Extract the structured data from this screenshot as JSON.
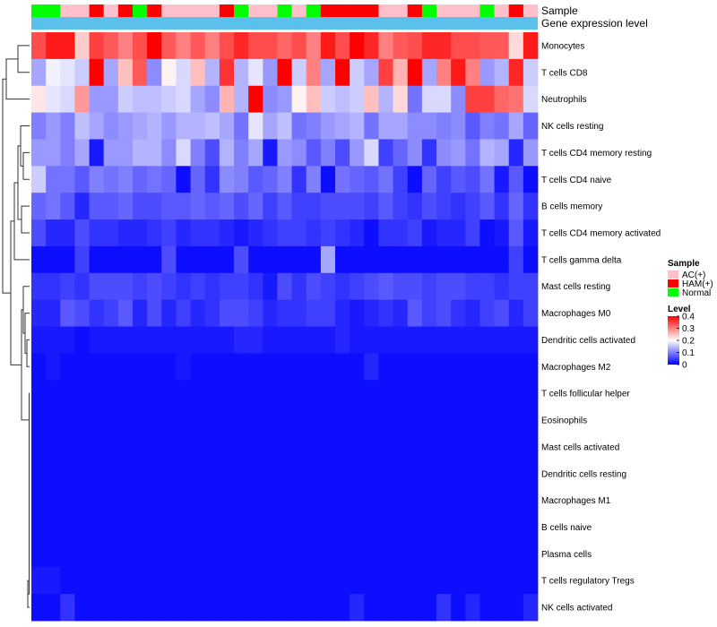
{
  "chart_data": {
    "type": "heatmap",
    "annotation_track_labels": [
      "Sample",
      "Gene expression level"
    ],
    "rows": [
      "Monocytes",
      "T cells CD8",
      "Neutrophils",
      "NK cells resting",
      "T cells CD4 memory resting",
      "T cells CD4 naive",
      "B cells memory",
      "T cells CD4 memory activated",
      "T cells gamma delta",
      "Mast cells resting",
      "Macrophages M0",
      "Dendritic cells activated",
      "Macrophages M2",
      "T cells follicular helper",
      "Eosinophils",
      "Mast cells activated",
      "Dendritic cells resting",
      "Macrophages M1",
      "B cells naive",
      "Plasma cells",
      "T cells regulatory  Tregs",
      "NK cells activated"
    ],
    "sample_groups": [
      "Normal",
      "Normal",
      "AC(+)",
      "AC(+)",
      "HAM(+)",
      "AC(+)",
      "HAM(+)",
      "Normal",
      "HAM(+)",
      "AC(+)",
      "AC(+)",
      "AC(+)",
      "AC(+)",
      "HAM(+)",
      "Normal",
      "AC(+)",
      "AC(+)",
      "Normal",
      "AC(+)",
      "Normal",
      "HAM(+)",
      "HAM(+)",
      "HAM(+)",
      "HAM(+)",
      "AC(+)",
      "AC(+)",
      "HAM(+)",
      "Normal",
      "AC(+)",
      "AC(+)",
      "AC(+)",
      "Normal",
      "AC(+)",
      "HAM(+)",
      "AC(+)"
    ],
    "values": [
      [
        0.34,
        0.38,
        0.38,
        0.24,
        0.35,
        0.33,
        0.3,
        0.34,
        0.4,
        0.33,
        0.3,
        0.33,
        0.3,
        0.34,
        0.37,
        0.34,
        0.34,
        0.32,
        0.34,
        0.3,
        0.38,
        0.34,
        0.4,
        0.37,
        0.3,
        0.33,
        0.34,
        0.37,
        0.37,
        0.34,
        0.34,
        0.33,
        0.33,
        0.23,
        0.38
      ],
      [
        0.13,
        0.19,
        0.18,
        0.16,
        0.4,
        0.13,
        0.25,
        0.33,
        0.11,
        0.21,
        0.17,
        0.25,
        0.14,
        0.36,
        0.14,
        0.18,
        0.12,
        0.4,
        0.16,
        0.3,
        0.13,
        0.4,
        0.16,
        0.13,
        0.35,
        0.26,
        0.4,
        0.13,
        0.3,
        0.38,
        0.3,
        0.12,
        0.14,
        0.37,
        0.16
      ],
      [
        0.22,
        0.18,
        0.17,
        0.28,
        0.12,
        0.12,
        0.16,
        0.15,
        0.15,
        0.16,
        0.17,
        0.13,
        0.11,
        0.26,
        0.14,
        0.4,
        0.11,
        0.12,
        0.21,
        0.25,
        0.16,
        0.15,
        0.16,
        0.25,
        0.14,
        0.23,
        0.09,
        0.17,
        0.17,
        0.11,
        0.35,
        0.35,
        0.32,
        0.31,
        0.17
      ],
      [
        0.1,
        0.12,
        0.1,
        0.15,
        0.13,
        0.11,
        0.12,
        0.13,
        0.14,
        0.12,
        0.14,
        0.14,
        0.15,
        0.13,
        0.09,
        0.18,
        0.13,
        0.15,
        0.09,
        0.1,
        0.12,
        0.13,
        0.14,
        0.09,
        0.13,
        0.13,
        0.11,
        0.11,
        0.1,
        0.11,
        0.07,
        0.1,
        0.09,
        0.13,
        0.08
      ],
      [
        0.12,
        0.12,
        0.1,
        0.13,
        0.02,
        0.12,
        0.12,
        0.14,
        0.14,
        0.11,
        0.17,
        0.1,
        0.06,
        0.14,
        0.1,
        0.13,
        0.02,
        0.12,
        0.11,
        0.07,
        0.1,
        0.06,
        0.12,
        0.17,
        0.05,
        0.08,
        0.11,
        0.04,
        0.11,
        0.12,
        0.09,
        0.14,
        0.13,
        0.03,
        0.12
      ],
      [
        0.16,
        0.09,
        0.09,
        0.07,
        0.1,
        0.09,
        0.1,
        0.08,
        0.09,
        0.08,
        0.01,
        0.08,
        0.04,
        0.11,
        0.1,
        0.07,
        0.08,
        0.1,
        0.04,
        0.1,
        0.01,
        0.09,
        0.08,
        0.07,
        0.09,
        0.05,
        0.01,
        0.08,
        0.05,
        0.07,
        0.06,
        0.09,
        0.02,
        0.07,
        0.01
      ],
      [
        0.08,
        0.09,
        0.07,
        0.03,
        0.07,
        0.07,
        0.08,
        0.06,
        0.06,
        0.07,
        0.07,
        0.08,
        0.07,
        0.08,
        0.06,
        0.08,
        0.05,
        0.07,
        0.05,
        0.05,
        0.06,
        0.06,
        0.06,
        0.05,
        0.07,
        0.05,
        0.04,
        0.06,
        0.05,
        0.04,
        0.05,
        0.07,
        0.04,
        0.08,
        0.04
      ],
      [
        0.06,
        0.03,
        0.03,
        0.06,
        0.04,
        0.04,
        0.03,
        0.03,
        0.04,
        0.05,
        0.03,
        0.04,
        0.04,
        0.03,
        0.02,
        0.03,
        0.04,
        0.05,
        0.05,
        0.04,
        0.05,
        0.04,
        0.03,
        0.01,
        0.04,
        0.04,
        0.05,
        0.02,
        0.03,
        0.03,
        0.05,
        0.01,
        0.02,
        0.07,
        0.02
      ],
      [
        0.01,
        0.01,
        0.01,
        0.05,
        0.01,
        0.01,
        0.01,
        0.01,
        0.01,
        0.06,
        0.01,
        0.01,
        0.01,
        0.01,
        0.06,
        0.01,
        0.01,
        0.01,
        0.01,
        0.01,
        0.13,
        0.01,
        0.01,
        0.01,
        0.01,
        0.01,
        0.01,
        0.01,
        0.01,
        0.01,
        0.01,
        0.01,
        0.01,
        0.05,
        0.01
      ],
      [
        0.04,
        0.04,
        0.05,
        0.04,
        0.06,
        0.06,
        0.06,
        0.05,
        0.06,
        0.05,
        0.04,
        0.05,
        0.04,
        0.05,
        0.05,
        0.04,
        0.02,
        0.06,
        0.04,
        0.06,
        0.05,
        0.04,
        0.05,
        0.06,
        0.07,
        0.06,
        0.06,
        0.05,
        0.06,
        0.06,
        0.05,
        0.05,
        0.04,
        0.05,
        0.05
      ],
      [
        0.03,
        0.03,
        0.07,
        0.06,
        0.04,
        0.05,
        0.07,
        0.03,
        0.06,
        0.03,
        0.05,
        0.03,
        0.04,
        0.06,
        0.06,
        0.05,
        0.03,
        0.04,
        0.04,
        0.05,
        0.05,
        0.03,
        0.02,
        0.03,
        0.04,
        0.03,
        0.07,
        0.05,
        0.06,
        0.04,
        0.03,
        0.05,
        0.06,
        0.03,
        0.05
      ],
      [
        0.02,
        0.02,
        0.02,
        0.01,
        0.02,
        0.02,
        0.02,
        0.02,
        0.02,
        0.02,
        0.02,
        0.02,
        0.02,
        0.02,
        0.03,
        0.03,
        0.02,
        0.02,
        0.02,
        0.02,
        0.02,
        0.03,
        0.02,
        0.02,
        0.02,
        0.02,
        0.02,
        0.02,
        0.02,
        0.02,
        0.02,
        0.02,
        0.02,
        0.02,
        0.02
      ],
      [
        0.01,
        0.02,
        0.01,
        0.01,
        0.01,
        0.01,
        0.01,
        0.01,
        0.01,
        0.01,
        0.02,
        0.01,
        0.01,
        0.01,
        0.01,
        0.01,
        0.01,
        0.01,
        0.01,
        0.01,
        0.01,
        0.01,
        0.01,
        0.03,
        0.01,
        0.01,
        0.01,
        0.01,
        0.01,
        0.01,
        0.01,
        0.01,
        0.01,
        0.01,
        0.01
      ],
      [
        0.01,
        0.01,
        0.01,
        0.01,
        0.01,
        0.01,
        0.01,
        0.01,
        0.01,
        0.01,
        0.01,
        0.01,
        0.01,
        0.01,
        0.01,
        0.01,
        0.01,
        0.01,
        0.01,
        0.01,
        0.01,
        0.01,
        0.01,
        0.01,
        0.01,
        0.01,
        0.01,
        0.01,
        0.01,
        0.01,
        0.01,
        0.01,
        0.01,
        0.01,
        0.01
      ],
      [
        0.01,
        0.01,
        0.01,
        0.01,
        0.01,
        0.01,
        0.01,
        0.01,
        0.01,
        0.01,
        0.01,
        0.01,
        0.01,
        0.01,
        0.01,
        0.01,
        0.01,
        0.01,
        0.01,
        0.01,
        0.01,
        0.01,
        0.01,
        0.01,
        0.01,
        0.01,
        0.01,
        0.01,
        0.01,
        0.01,
        0.01,
        0.01,
        0.01,
        0.01,
        0.01
      ],
      [
        0.01,
        0.01,
        0.01,
        0.01,
        0.01,
        0.01,
        0.01,
        0.01,
        0.01,
        0.01,
        0.01,
        0.01,
        0.01,
        0.01,
        0.01,
        0.01,
        0.01,
        0.01,
        0.01,
        0.01,
        0.01,
        0.01,
        0.01,
        0.01,
        0.01,
        0.01,
        0.01,
        0.01,
        0.01,
        0.01,
        0.01,
        0.01,
        0.01,
        0.01,
        0.01
      ],
      [
        0.01,
        0.01,
        0.01,
        0.01,
        0.01,
        0.01,
        0.01,
        0.01,
        0.01,
        0.01,
        0.01,
        0.01,
        0.01,
        0.01,
        0.01,
        0.01,
        0.01,
        0.01,
        0.01,
        0.01,
        0.01,
        0.01,
        0.01,
        0.01,
        0.01,
        0.01,
        0.01,
        0.01,
        0.01,
        0.01,
        0.01,
        0.01,
        0.01,
        0.01,
        0.01
      ],
      [
        0.01,
        0.01,
        0.01,
        0.01,
        0.01,
        0.01,
        0.01,
        0.01,
        0.01,
        0.01,
        0.01,
        0.01,
        0.01,
        0.01,
        0.01,
        0.01,
        0.01,
        0.01,
        0.01,
        0.01,
        0.01,
        0.01,
        0.01,
        0.01,
        0.01,
        0.01,
        0.01,
        0.01,
        0.01,
        0.01,
        0.01,
        0.01,
        0.01,
        0.01,
        0.01
      ],
      [
        0.01,
        0.01,
        0.01,
        0.01,
        0.01,
        0.01,
        0.01,
        0.01,
        0.01,
        0.01,
        0.01,
        0.01,
        0.01,
        0.01,
        0.01,
        0.01,
        0.01,
        0.01,
        0.01,
        0.01,
        0.01,
        0.01,
        0.01,
        0.01,
        0.01,
        0.01,
        0.01,
        0.01,
        0.01,
        0.01,
        0.01,
        0.01,
        0.01,
        0.01,
        0.01
      ],
      [
        0.01,
        0.01,
        0.01,
        0.01,
        0.01,
        0.01,
        0.01,
        0.01,
        0.01,
        0.01,
        0.01,
        0.01,
        0.01,
        0.01,
        0.01,
        0.01,
        0.01,
        0.01,
        0.01,
        0.01,
        0.01,
        0.01,
        0.01,
        0.01,
        0.01,
        0.01,
        0.01,
        0.01,
        0.01,
        0.01,
        0.01,
        0.01,
        0.01,
        0.01,
        0.01
      ],
      [
        0.02,
        0.02,
        0.01,
        0.01,
        0.01,
        0.01,
        0.01,
        0.01,
        0.01,
        0.01,
        0.01,
        0.01,
        0.01,
        0.01,
        0.01,
        0.01,
        0.01,
        0.01,
        0.01,
        0.01,
        0.01,
        0.01,
        0.01,
        0.01,
        0.01,
        0.01,
        0.01,
        0.01,
        0.01,
        0.01,
        0.01,
        0.01,
        0.01,
        0.01,
        0.01
      ],
      [
        0.01,
        0.01,
        0.04,
        0.01,
        0.01,
        0.01,
        0.01,
        0.01,
        0.01,
        0.01,
        0.01,
        0.01,
        0.01,
        0.01,
        0.01,
        0.01,
        0.01,
        0.01,
        0.01,
        0.01,
        0.01,
        0.01,
        0.03,
        0.01,
        0.01,
        0.01,
        0.01,
        0.01,
        0.04,
        0.01,
        0.03,
        0.01,
        0.01,
        0.01,
        0.03
      ]
    ],
    "legend": {
      "sample_title": "Sample",
      "groups": [
        {
          "name": "AC(+)",
          "color": "#FFC0CB"
        },
        {
          "name": "HAM(+)",
          "color": "#FF0000"
        },
        {
          "name": "Normal",
          "color": "#00FF00"
        }
      ],
      "level_title": "Level",
      "level_ticks": [
        "0.4",
        "0.3",
        "0.2",
        "0.1",
        "0"
      ],
      "level_range": [
        0,
        0.4
      ]
    },
    "colors": {
      "low": "#0000FF",
      "mid": "#FFFFFF",
      "high": "#FF0000",
      "expression_bar": "#5BC0EB"
    },
    "dendrogram": "hierarchical clustering of rows (left)"
  }
}
